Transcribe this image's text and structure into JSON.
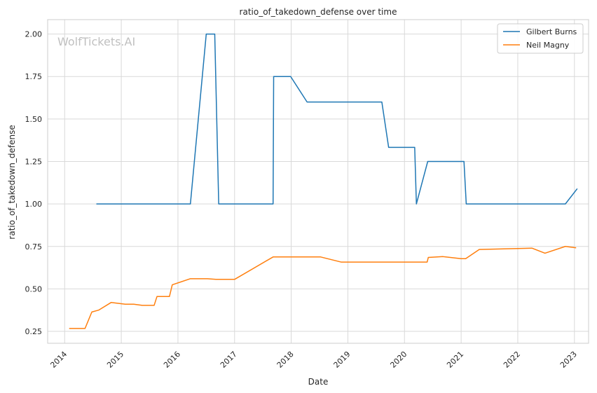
{
  "chart_data": {
    "type": "line",
    "title": "ratio_of_takedown_defense over time",
    "xlabel": "Date",
    "ylabel": "ratio_of_takedown_defense",
    "watermark": "WolfTickets.AI",
    "xlim": [
      2013.7,
      2023.25
    ],
    "ylim": [
      0.18,
      2.085
    ],
    "x_ticks": [
      2014,
      2015,
      2016,
      2017,
      2018,
      2019,
      2020,
      2021,
      2022,
      2023
    ],
    "x_tick_labels": [
      "2014",
      "2015",
      "2016",
      "2017",
      "2018",
      "2019",
      "2020",
      "2021",
      "2022",
      "2023"
    ],
    "y_ticks": [
      0.25,
      0.5,
      0.75,
      1.0,
      1.25,
      1.5,
      1.75,
      2.0
    ],
    "y_tick_labels": [
      "0.25",
      "0.50",
      "0.75",
      "1.00",
      "1.25",
      "1.50",
      "1.75",
      "2.00"
    ],
    "grid": true,
    "legend_position": "top-right",
    "series": [
      {
        "name": "Gilbert Burns",
        "color": "#1f77b4",
        "x": [
          2014.56,
          2016.22,
          2016.5,
          2016.65,
          2016.72,
          2017.68,
          2017.69,
          2017.99,
          2018.28,
          2019.6,
          2019.72,
          2020.18,
          2020.21,
          2020.41,
          2021.05,
          2021.09,
          2022.84,
          2023.05
        ],
        "y": [
          1.0,
          1.0,
          2.0,
          2.0,
          1.0,
          1.0,
          1.75,
          1.75,
          1.6,
          1.6,
          1.333,
          1.333,
          1.0,
          1.25,
          1.25,
          1.0,
          1.0,
          1.09
        ]
      },
      {
        "name": "Neil Magny",
        "color": "#ff7f0e",
        "x": [
          2014.08,
          2014.36,
          2014.48,
          2014.6,
          2014.82,
          2015.07,
          2015.22,
          2015.37,
          2015.58,
          2015.63,
          2015.85,
          2015.9,
          2016.22,
          2016.52,
          2016.67,
          2017.0,
          2017.68,
          2018.52,
          2018.88,
          2019.45,
          2020.4,
          2020.42,
          2020.68,
          2021.0,
          2021.08,
          2021.32,
          2022.25,
          2022.48,
          2022.84,
          2023.03
        ],
        "y": [
          0.267,
          0.267,
          0.364,
          0.375,
          0.42,
          0.41,
          0.41,
          0.403,
          0.403,
          0.455,
          0.455,
          0.524,
          0.56,
          0.56,
          0.556,
          0.556,
          0.688,
          0.688,
          0.658,
          0.658,
          0.658,
          0.685,
          0.69,
          0.678,
          0.678,
          0.732,
          0.74,
          0.71,
          0.75,
          0.742
        ]
      }
    ]
  }
}
